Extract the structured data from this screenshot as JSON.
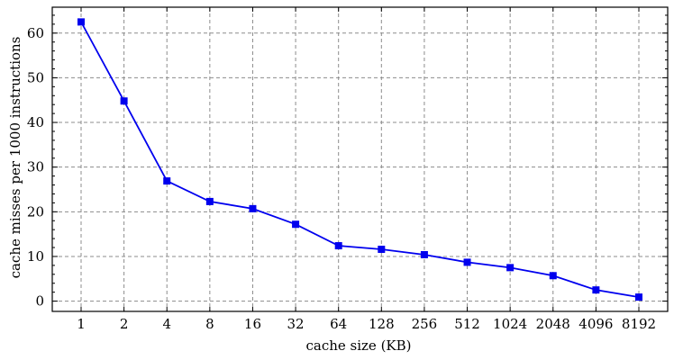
{
  "chart_data": {
    "type": "line",
    "title": "",
    "xlabel": "cache size (KB)",
    "ylabel": "cache misses per 1000 instructions",
    "categories": [
      "1",
      "2",
      "4",
      "8",
      "16",
      "32",
      "64",
      "128",
      "256",
      "512",
      "1024",
      "2048",
      "4096",
      "8192"
    ],
    "series": [
      {
        "values": [
          62.5,
          44.8,
          26.9,
          22.3,
          20.7,
          17.2,
          12.4,
          11.6,
          10.4,
          8.7,
          7.5,
          5.7,
          2.5,
          0.9
        ],
        "color": "#0000ee",
        "marker": "square"
      }
    ],
    "yticks": [
      0,
      10,
      20,
      30,
      40,
      50,
      60
    ],
    "ylim": [
      -2.3,
      65.8
    ],
    "grid": true,
    "legend": "none"
  }
}
